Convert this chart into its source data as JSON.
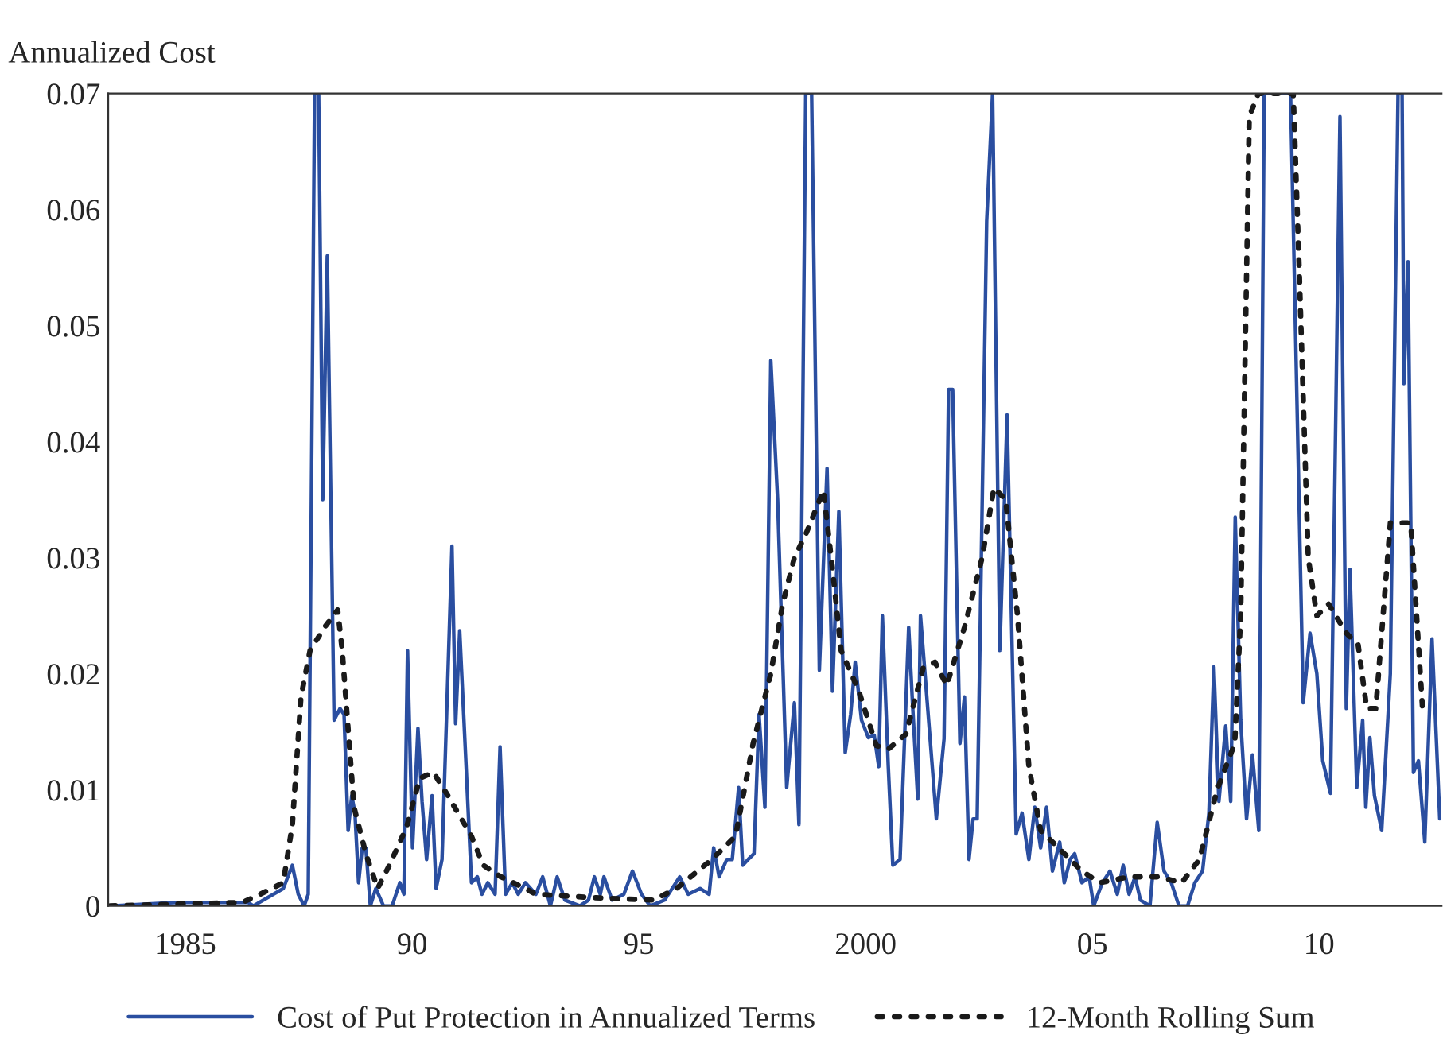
{
  "chart_data": {
    "type": "line",
    "ylabel": "Annualized Cost",
    "legend": "bottom",
    "grid": false,
    "xlim": [
      1983.3,
      2012.7
    ],
    "ylim": [
      0,
      0.07
    ],
    "xticks": [
      {
        "value": 1985,
        "label": "1985"
      },
      {
        "value": 1990,
        "label": "90"
      },
      {
        "value": 1995,
        "label": "95"
      },
      {
        "value": 2000,
        "label": "2000"
      },
      {
        "value": 2005,
        "label": "05"
      },
      {
        "value": 2010,
        "label": "10"
      }
    ],
    "yticks": [
      0,
      0.01,
      0.02,
      0.03,
      0.04,
      0.05,
      0.06,
      0.07
    ],
    "series": [
      {
        "name": "Cost of Put Protection in Annualized Terms",
        "color": "#2a4ea0",
        "line_style": "solid",
        "x": [
          1983.34,
          1984.83,
          1986.38,
          1986.5,
          1987.16,
          1987.36,
          1987.49,
          1987.62,
          1987.71,
          1987.85,
          1987.94,
          1988.03,
          1988.13,
          1988.28,
          1988.41,
          1988.5,
          1988.59,
          1988.67,
          1988.74,
          1988.82,
          1988.9,
          1988.98,
          1989.08,
          1989.2,
          1989.37,
          1989.56,
          1989.73,
          1989.82,
          1989.9,
          1990.01,
          1990.13,
          1990.22,
          1990.32,
          1990.44,
          1990.53,
          1990.66,
          1990.88,
          1990.96,
          1991.05,
          1991.18,
          1991.31,
          1991.44,
          1991.54,
          1991.67,
          1991.83,
          1991.94,
          1992.06,
          1992.21,
          1992.34,
          1992.5,
          1992.73,
          1992.88,
          1993.05,
          1993.2,
          1993.37,
          1993.7,
          1993.89,
          1994.02,
          1994.15,
          1994.23,
          1994.41,
          1994.67,
          1994.86,
          1995.06,
          1995.25,
          1995.57,
          1995.9,
          1996.09,
          1996.35,
          1996.55,
          1996.65,
          1996.77,
          1996.94,
          1997.06,
          1997.2,
          1997.29,
          1997.41,
          1997.54,
          1997.65,
          1997.78,
          1997.91,
          1998.06,
          1998.26,
          1998.43,
          1998.53,
          1998.68,
          1998.81,
          1998.98,
          1999.15,
          1999.27,
          1999.41,
          1999.55,
          1999.67,
          1999.77,
          1999.91,
          2000.06,
          2000.19,
          2000.29,
          2000.37,
          2000.5,
          2000.6,
          2000.76,
          2000.95,
          2001.04,
          2001.15,
          2001.21,
          2001.41,
          2001.56,
          2001.73,
          2001.83,
          2001.92,
          2002.08,
          2002.18,
          2002.28,
          2002.37,
          2002.46,
          2002.67,
          2002.8,
          2002.96,
          2003.12,
          2003.32,
          2003.45,
          2003.6,
          2003.73,
          2003.86,
          2003.99,
          2004.12,
          2004.28,
          2004.38,
          2004.51,
          2004.61,
          2004.77,
          2004.93,
          2005.03,
          2005.22,
          2005.39,
          2005.55,
          2005.68,
          2005.81,
          2005.94,
          2006.06,
          2006.27,
          2006.43,
          2006.58,
          2006.74,
          2006.91,
          2007.1,
          2007.26,
          2007.43,
          2007.57,
          2007.68,
          2007.79,
          2007.94,
          2008.05,
          2008.15,
          2008.27,
          2008.4,
          2008.53,
          2008.67,
          2008.79,
          2009.37,
          2009.65,
          2009.8,
          2009.95,
          2010.08,
          2010.25,
          2010.46,
          2010.6,
          2010.68,
          2010.83,
          2010.96,
          2011.03,
          2011.12,
          2011.22,
          2011.38,
          2011.57,
          2011.74,
          2011.83,
          2011.87,
          2011.96,
          2012.08,
          2012.19,
          2012.33,
          2012.49,
          2012.66
        ],
        "values": [
          0.0,
          0.0003,
          0.0003,
          0.0,
          0.0015,
          0.0035,
          0.001,
          0.0,
          0.001,
          0.07,
          0.07,
          0.035,
          0.056,
          0.016,
          0.017,
          0.0165,
          0.0065,
          0.0095,
          0.008,
          0.002,
          0.005,
          0.005,
          0.0,
          0.0015,
          0.0,
          0.0,
          0.002,
          0.001,
          0.022,
          0.005,
          0.0153,
          0.009,
          0.004,
          0.0095,
          0.0015,
          0.004,
          0.031,
          0.0157,
          0.0237,
          0.013,
          0.002,
          0.0025,
          0.001,
          0.002,
          0.001,
          0.0137,
          0.001,
          0.002,
          0.001,
          0.002,
          0.001,
          0.0025,
          0.0,
          0.0025,
          0.0005,
          0.0,
          0.0005,
          0.0025,
          0.001,
          0.0025,
          0.0005,
          0.001,
          0.003,
          0.001,
          0.0,
          0.0005,
          0.0025,
          0.001,
          0.0015,
          0.001,
          0.005,
          0.0025,
          0.004,
          0.004,
          0.0102,
          0.0035,
          0.004,
          0.0045,
          0.0165,
          0.0085,
          0.047,
          0.035,
          0.0102,
          0.0175,
          0.007,
          0.07,
          0.07,
          0.0203,
          0.0377,
          0.0185,
          0.034,
          0.0132,
          0.0165,
          0.021,
          0.016,
          0.0145,
          0.0147,
          0.012,
          0.025,
          0.012,
          0.0035,
          0.004,
          0.024,
          0.017,
          0.0092,
          0.025,
          0.015,
          0.0075,
          0.0144,
          0.0445,
          0.0445,
          0.014,
          0.018,
          0.004,
          0.0075,
          0.0075,
          0.059,
          0.07,
          0.022,
          0.0423,
          0.0062,
          0.008,
          0.004,
          0.0085,
          0.005,
          0.0085,
          0.003,
          0.0055,
          0.002,
          0.004,
          0.0045,
          0.002,
          0.0025,
          0.0,
          0.002,
          0.003,
          0.001,
          0.0035,
          0.001,
          0.0025,
          0.0005,
          0.0,
          0.0072,
          0.003,
          0.002,
          0.0,
          0.0,
          0.002,
          0.003,
          0.008,
          0.0206,
          0.009,
          0.0155,
          0.009,
          0.0335,
          0.016,
          0.0075,
          0.013,
          0.0065,
          0.07,
          0.07,
          0.0175,
          0.0235,
          0.02,
          0.0125,
          0.0097,
          0.068,
          0.017,
          0.029,
          0.0102,
          0.016,
          0.0085,
          0.0145,
          0.0095,
          0.0065,
          0.02,
          0.07,
          0.07,
          0.045,
          0.0555,
          0.0115,
          0.0125,
          0.0055,
          0.023,
          0.0075
        ]
      },
      {
        "name": "12-Month Rolling Sum",
        "color": "#1a1a1a",
        "line_style": "dotted",
        "x": [
          1983.34,
          1986.26,
          1986.65,
          1987.16,
          1987.36,
          1987.55,
          1987.75,
          1988.07,
          1988.36,
          1988.46,
          1988.72,
          1988.98,
          1989.24,
          1989.5,
          1989.88,
          1990.17,
          1990.47,
          1990.79,
          1991.31,
          1991.57,
          1991.96,
          1992.5,
          1992.73,
          1994.02,
          1995.32,
          1995.83,
          1996.61,
          1997.13,
          1997.52,
          1997.91,
          1998.17,
          1998.43,
          1998.68,
          1999.07,
          1999.27,
          1999.46,
          1999.85,
          2000.24,
          2000.5,
          2000.89,
          2001.27,
          2001.53,
          2001.79,
          2002.18,
          2002.57,
          2002.83,
          2003.09,
          2003.35,
          2003.6,
          2003.86,
          2004.25,
          2004.77,
          2005.16,
          2005.81,
          2006.45,
          2006.97,
          2007.36,
          2007.75,
          2008.14,
          2008.27,
          2008.46,
          2008.66,
          2009.43,
          2009.56,
          2009.76,
          2009.95,
          2010.21,
          2010.6,
          2010.86,
          2011.05,
          2011.25,
          2011.57,
          2012.02,
          2012.15,
          2012.28
        ],
        "values": [
          0.0,
          0.0003,
          0.001,
          0.002,
          0.007,
          0.018,
          0.022,
          0.024,
          0.0255,
          0.022,
          0.0085,
          0.0045,
          0.0015,
          0.0035,
          0.0068,
          0.011,
          0.0115,
          0.0095,
          0.006,
          0.0035,
          0.0025,
          0.0015,
          0.001,
          0.0007,
          0.0005,
          0.0015,
          0.004,
          0.006,
          0.014,
          0.02,
          0.026,
          0.03,
          0.032,
          0.0358,
          0.029,
          0.022,
          0.0185,
          0.0138,
          0.0135,
          0.0148,
          0.0205,
          0.021,
          0.019,
          0.024,
          0.03,
          0.036,
          0.035,
          0.025,
          0.012,
          0.0065,
          0.005,
          0.003,
          0.002,
          0.0025,
          0.0025,
          0.002,
          0.004,
          0.01,
          0.014,
          0.025,
          0.068,
          0.07,
          0.07,
          0.055,
          0.03,
          0.025,
          0.026,
          0.0235,
          0.0225,
          0.017,
          0.017,
          0.033,
          0.033,
          0.025,
          0.017
        ]
      }
    ]
  }
}
